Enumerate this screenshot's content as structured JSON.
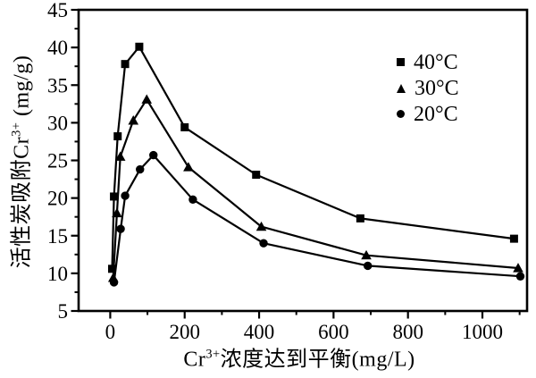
{
  "figure": {
    "background": "#ffffff",
    "ink_color": "#000000"
  },
  "chart_data": {
    "type": "line",
    "title": "",
    "xlabel_parts": {
      "pre": "Cr",
      "sup": "3+",
      "post": "浓度达到平衡(mg/L)"
    },
    "ylabel_parts": {
      "pre": "活性炭吸附Cr",
      "sup": "3+",
      "post": " (mg/g)"
    },
    "xlim": [
      -85,
      1120
    ],
    "ylim": [
      5,
      45
    ],
    "x_major_ticks": [
      0,
      200,
      400,
      600,
      800,
      1000
    ],
    "x_minor_ticks": [
      100,
      300,
      500,
      700,
      900,
      1100
    ],
    "y_major_ticks": [
      5,
      10,
      15,
      20,
      25,
      30,
      35,
      40,
      45
    ],
    "y_minor_ticks": [
      7.5,
      12.5,
      17.5,
      22.5,
      27.5,
      32.5,
      37.5,
      42.5
    ],
    "grid": false,
    "legend_position": "upper-right-inside",
    "series": [
      {
        "name": "40°C",
        "marker": "square",
        "x": [
          5,
          10,
          20,
          40,
          78,
          200,
          392,
          672,
          1085
        ],
        "y": [
          10.6,
          20.2,
          28.2,
          37.8,
          40.1,
          29.4,
          23.1,
          17.3,
          14.6
        ]
      },
      {
        "name": "30°C",
        "marker": "triangle",
        "x": [
          8,
          18,
          27,
          62,
          98,
          210,
          406,
          688,
          1096
        ],
        "y": [
          9.4,
          18.0,
          25.5,
          30.3,
          33.1,
          24.1,
          16.2,
          12.4,
          10.7
        ]
      },
      {
        "name": "20°C",
        "marker": "circle",
        "x": [
          10,
          28,
          40,
          80,
          116,
          222,
          412,
          692,
          1102
        ],
        "y": [
          8.8,
          15.9,
          20.3,
          23.8,
          25.7,
          19.8,
          14.0,
          11.0,
          9.6
        ]
      }
    ]
  }
}
